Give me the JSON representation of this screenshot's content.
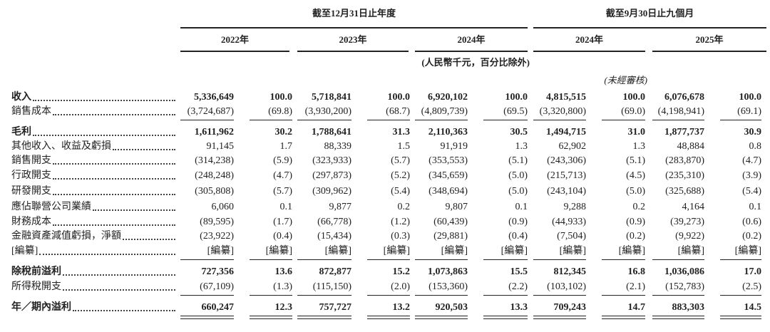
{
  "header": {
    "groups": [
      "截至12月31日止年度",
      "截至9月30日止九個月"
    ],
    "years": [
      "2022年",
      "2023年",
      "2024年",
      "2024年",
      "2025年"
    ],
    "unit": "(人民幣千元，百分比除外)",
    "unaudited": "(未經審核)"
  },
  "table": {
    "rows": [
      {
        "label": "收入",
        "cells": [
          "5,336,649",
          "100.0",
          "5,718,841",
          "100.0",
          "6,920,102",
          "100.0",
          "4,815,515",
          "100.0",
          "6,076,678",
          "100.0"
        ]
      },
      {
        "label": "銷售成本",
        "cells": [
          "(3,724,687)",
          "(69.8)",
          "(3,930,200)",
          "(68.7)",
          "(4,809,739)",
          "(69.5)",
          "(3,320,800)",
          "(69.0)",
          "(4,198,941)",
          "(69.1)"
        ]
      },
      {
        "label": "毛利",
        "cells": [
          "1,611,962",
          "30.2",
          "1,788,641",
          "31.3",
          "2,110,363",
          "30.5",
          "1,494,715",
          "31.0",
          "1,877,737",
          "30.9"
        ]
      },
      {
        "label": "其他收入、收益及虧損",
        "cells": [
          "91,145",
          "1.7",
          "88,339",
          "1.5",
          "91,919",
          "1.3",
          "62,902",
          "1.3",
          "48,884",
          "0.8"
        ]
      },
      {
        "label": "銷售開支",
        "cells": [
          "(314,238)",
          "(5.9)",
          "(323,933)",
          "(5.7)",
          "(353,553)",
          "(5.1)",
          "(243,306)",
          "(5.1)",
          "(283,870)",
          "(4.7)"
        ]
      },
      {
        "label": "行政開支",
        "cells": [
          "(248,248)",
          "(4.7)",
          "(297,873)",
          "(5.2)",
          "(345,659)",
          "(5.0)",
          "(215,713)",
          "(4.5)",
          "(235,310)",
          "(3.9)"
        ]
      },
      {
        "label": "研發開支",
        "cells": [
          "(305,808)",
          "(5.7)",
          "(309,962)",
          "(5.4)",
          "(348,694)",
          "(5.0)",
          "(243,104)",
          "(5.0)",
          "(325,688)",
          "(5.4)"
        ]
      },
      {
        "label": "應佔聯營公司業績",
        "cells": [
          "6,060",
          "0.1",
          "9,877",
          "0.2",
          "9,807",
          "0.1",
          "9,288",
          "0.2",
          "4,164",
          "0.1"
        ]
      },
      {
        "label": "財務成本",
        "cells": [
          "(89,595)",
          "(1.7)",
          "(66,778)",
          "(1.2)",
          "(60,439)",
          "(0.9)",
          "(44,933)",
          "(0.9)",
          "(39,273)",
          "(0.6)"
        ]
      },
      {
        "label": "金融資產減值虧損，淨額",
        "cells": [
          "(23,922)",
          "(0.4)",
          "(15,434)",
          "(0.3)",
          "(29,881)",
          "(0.4)",
          "(7,504)",
          "(0.2)",
          "(9,922)",
          "(0.2)"
        ]
      },
      {
        "label": "[編纂]",
        "cells": [
          "[編纂]",
          "[編纂]",
          "[編纂]",
          "[編纂]",
          "[編纂]",
          "[編纂]",
          "[編纂]",
          "[編纂]",
          "[編纂]",
          "[編纂]"
        ]
      },
      {
        "label": "除稅前溢利",
        "cells": [
          "727,356",
          "13.6",
          "872,877",
          "15.2",
          "1,073,863",
          "15.5",
          "812,345",
          "16.8",
          "1,036,086",
          "17.0"
        ]
      },
      {
        "label": "所得稅開支",
        "cells": [
          "(67,109)",
          "(1.3)",
          "(115,150)",
          "(2.0)",
          "(153,360)",
          "(2.2)",
          "(103,102)",
          "(2.1)",
          "(152,783)",
          "(2.5)"
        ]
      },
      {
        "label": "年／期內溢利",
        "cells": [
          "660,247",
          "12.3",
          "757,727",
          "13.2",
          "920,503",
          "13.3",
          "709,243",
          "14.7",
          "883,303",
          "14.5"
        ]
      }
    ]
  }
}
